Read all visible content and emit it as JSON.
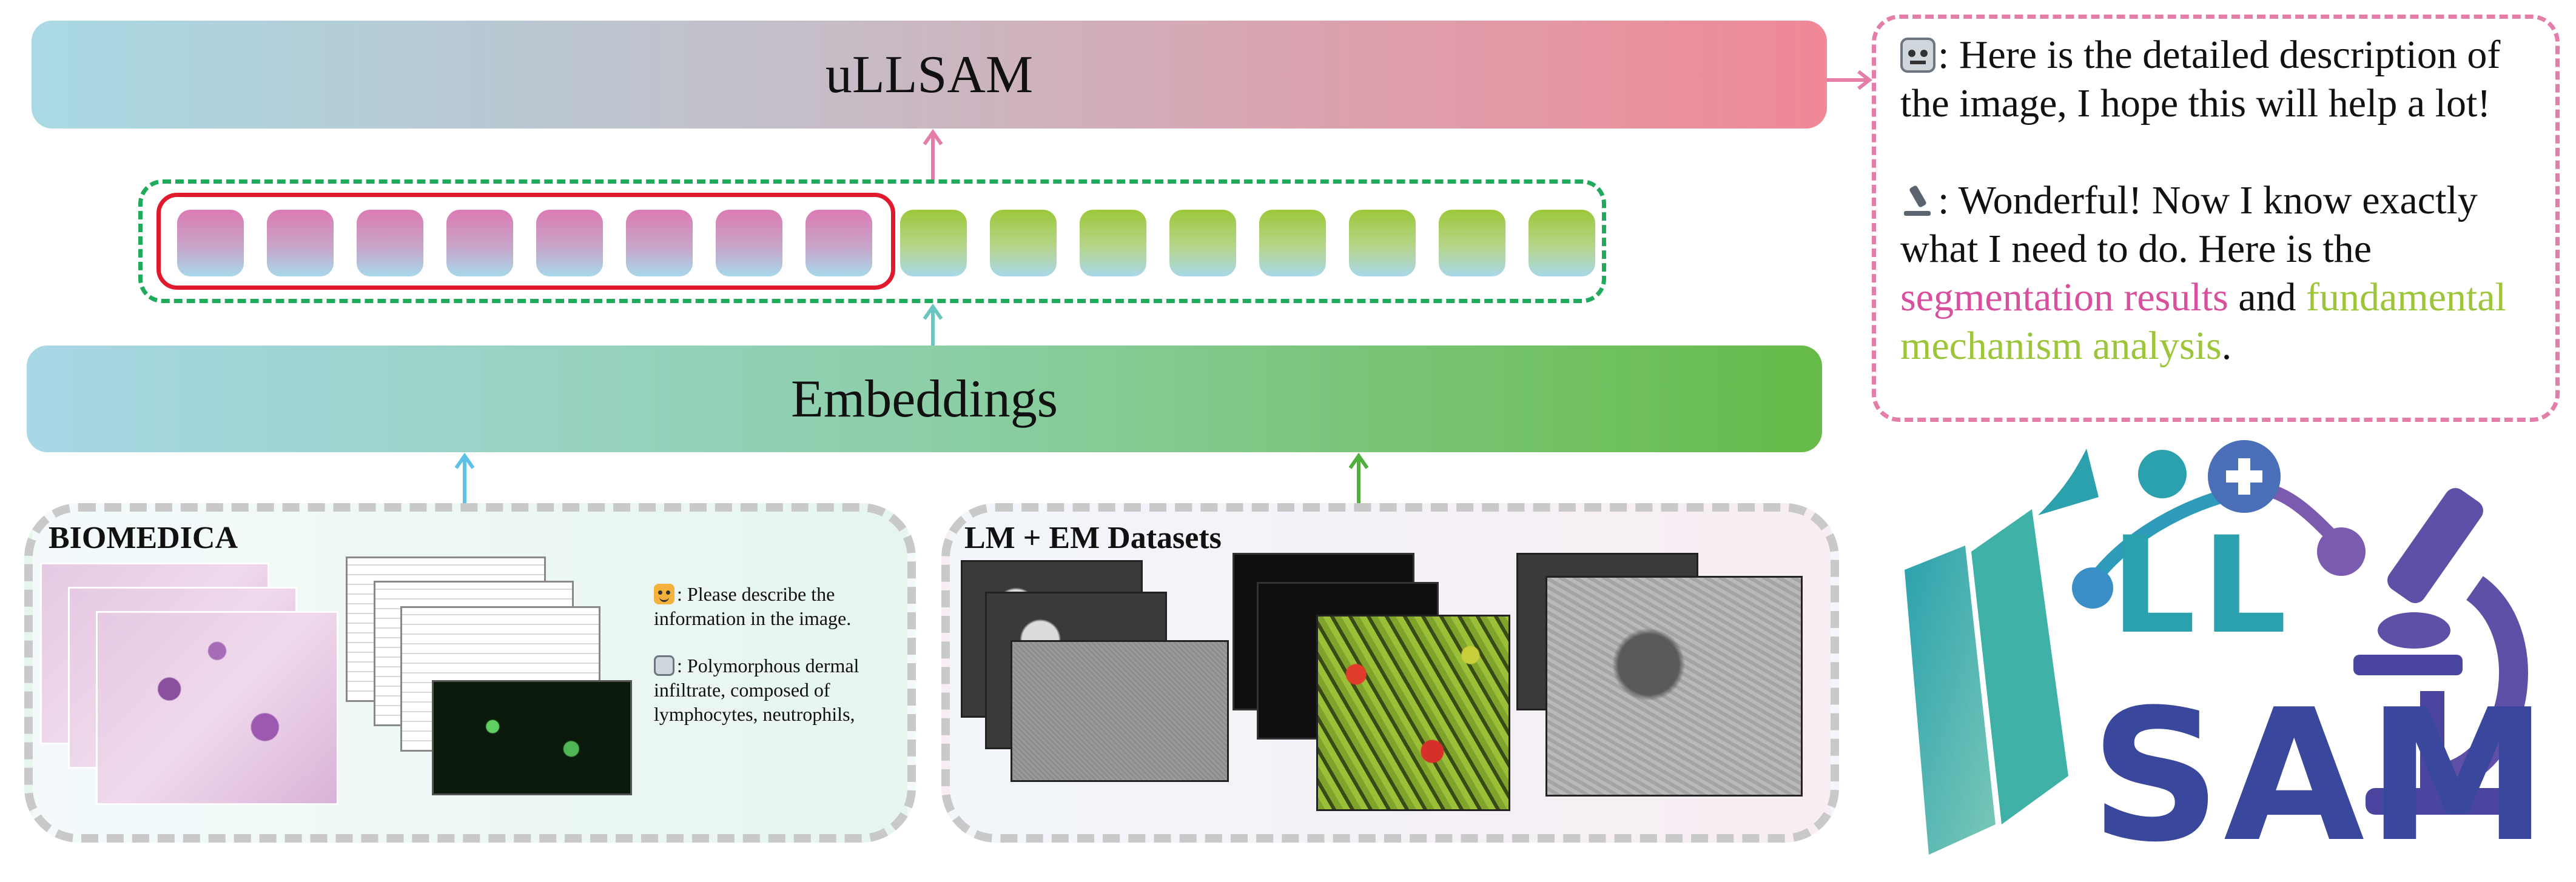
{
  "top_bar": {
    "label": "uLLSAM"
  },
  "embed_bar": {
    "label": "Embeddings"
  },
  "tokens": {
    "pink": [
      1,
      2,
      3,
      4,
      5,
      6,
      7,
      8
    ],
    "green": [
      1,
      2,
      3,
      4,
      5,
      6,
      7,
      8
    ]
  },
  "response": {
    "line1": ": Here is the detailed description of the image, I hope this will help a lot!",
    "line2_prefix": ": Wonderful! Now I know exactly what I need to do. Here is the ",
    "seg": "segmentation results",
    "and": " and ",
    "mech": "fundamental mechanism analysis",
    "period": "."
  },
  "biomedica": {
    "title": "BIOMEDICA",
    "user_msg": ": Please describe the information in the image.",
    "bot_msg": ": Polymorphous dermal infiltrate, composed of lymphocytes, neutrophils,"
  },
  "lmem": {
    "title": "LM + EM Datasets"
  },
  "logo": {
    "ll": "LL",
    "sam": "SAM"
  },
  "colors": {
    "pink": "#e47ea8",
    "green": "#1faa5c",
    "red": "#e0192c",
    "blue_arrow": "#5ec2e8",
    "teal_arrow": "#6cc6c0"
  },
  "icons": [
    "robot-icon",
    "microscope-icon",
    "smile-face-icon",
    "book-icon"
  ]
}
